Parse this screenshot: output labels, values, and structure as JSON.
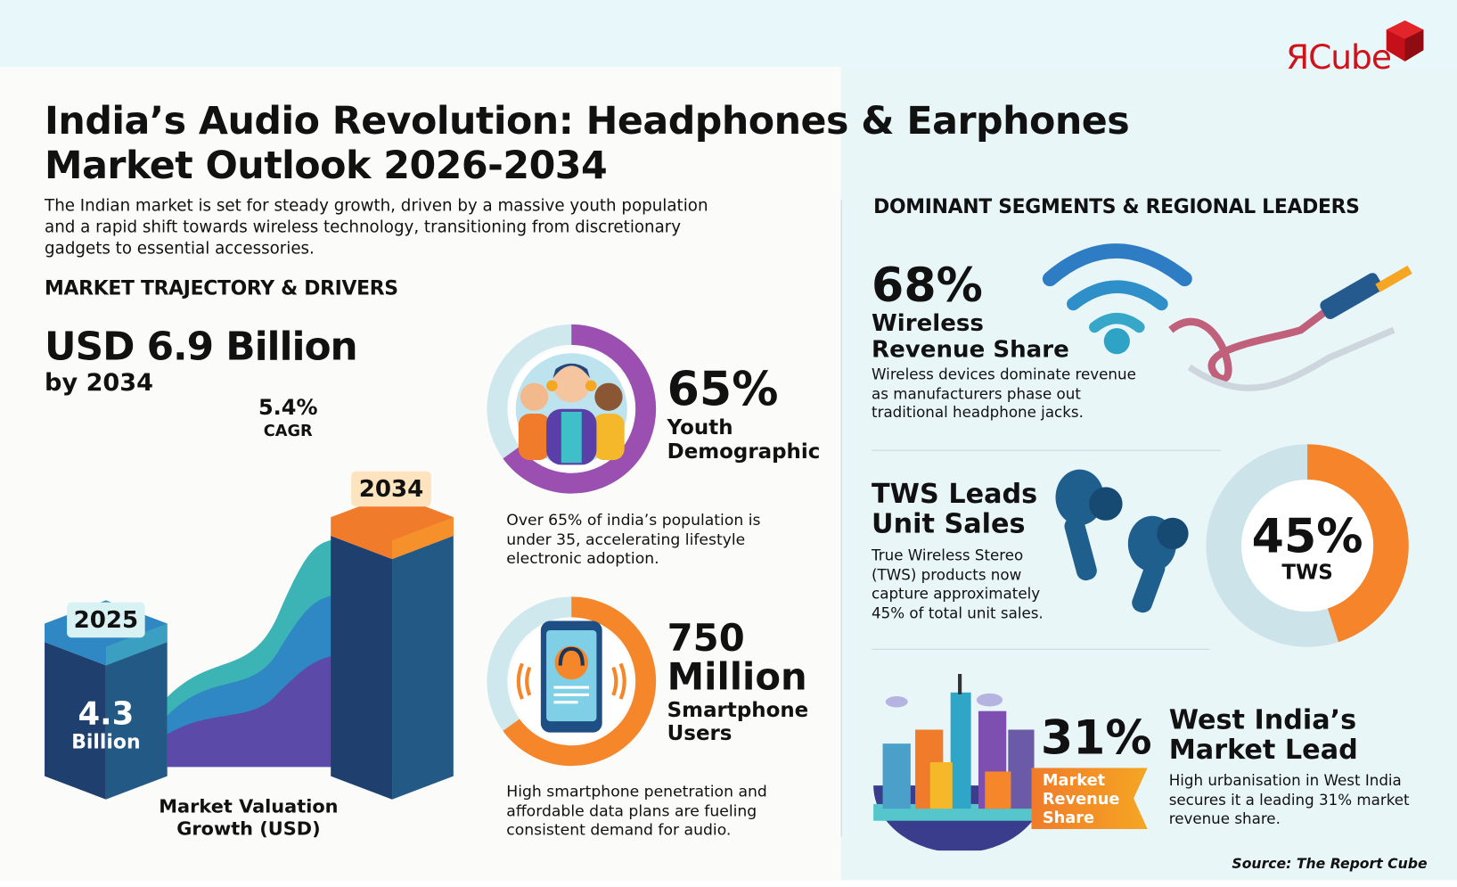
{
  "logo": {
    "text": "ЯCube",
    "brand_color": "#d0121b"
  },
  "header": {
    "title_line1": "India’s Audio Revolution: Headphones & Earphones",
    "title_line2": "Market Outlook 2026-2034",
    "intro": "The Indian market is set for steady growth, driven by a massive youth population and a rapid shift towards wireless technology, transitioning from discretionary gadgets to essential accessories."
  },
  "left": {
    "section_title": "MARKET TRAJECTORY & DRIVERS",
    "headline_value": "USD 6.9 Billion",
    "headline_sub": "by 2034",
    "cagr_value": "5.4%",
    "cagr_label": "CAGR",
    "bar_2025_year": "2025",
    "bar_2025_value": "4.3",
    "bar_2025_unit": "Billion",
    "bar_2034_year": "2034",
    "chart_caption_line1": "Market Valuation",
    "chart_caption_line2": "Growth (USD)",
    "youth": {
      "value": "65%",
      "label_line1": "Youth",
      "label_line2": "Demographic",
      "ring_fraction": 0.65,
      "desc": "Over 65% of india’s population is under 35, accelerating lifestyle electronic adoption.",
      "color": "#9b4fb0"
    },
    "smartphone": {
      "value_line1": "750",
      "value_line2": "Million",
      "label_line1": "Smartphone",
      "label_line2": "Users",
      "desc": "High smartphone penetration and affordable data plans are fueling consistent demand for audio.",
      "color": "#f5872a"
    }
  },
  "chart_data": {
    "type": "bar",
    "categories": [
      "2025",
      "2034"
    ],
    "values": [
      4.3,
      6.9
    ],
    "ylabel": "",
    "xlabel": "Market Valuation Growth (USD)"
  },
  "right": {
    "section_title": "DOMINANT SEGMENTS & REGIONAL LEADERS",
    "wireless": {
      "value": "68%",
      "label_line1": "Wireless",
      "label_line2": "Revenue Share",
      "desc": "Wireless devices dominate revenue as manufacturers phase out traditional headphone jacks."
    },
    "tws": {
      "title_line1": "TWS Leads",
      "title_line2": "Unit Sales",
      "desc": "True Wireless Stereo (TWS) products now capture approximately 45% of total unit sales.",
      "donut_value": "45%",
      "donut_label": "TWS",
      "donut_fraction": 0.45,
      "donut_color": "#f5842a",
      "donut_rest_color": "#cde3ea"
    },
    "west": {
      "value": "31%",
      "badge_line1": "Market",
      "badge_line2": "Revenue",
      "badge_line3": "Share",
      "title_line1": "West India’s",
      "title_line2": "Market Lead",
      "desc": "High urbanisation in West India secures it a leading 31% market revenue share."
    }
  },
  "footer": {
    "source": "Source: The Report Cube"
  }
}
